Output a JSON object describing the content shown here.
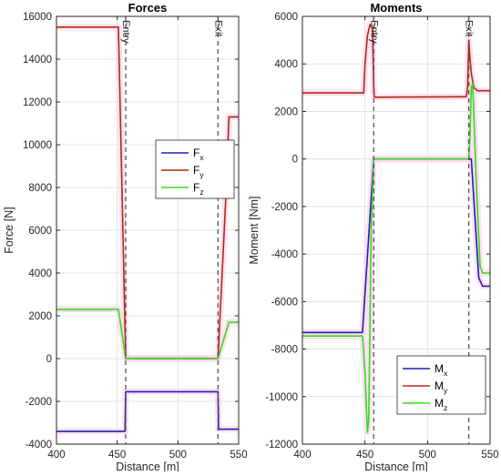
{
  "colors": {
    "x": "#1f1fb0",
    "y": "#b02a0e",
    "z": "#33dd1a",
    "halo": "#ffd6f0",
    "grid": "#dcdcdc",
    "axis": "#262626",
    "marker": "#555555"
  },
  "chart_data": [
    {
      "type": "line",
      "title": "Forces",
      "xlabel": "Distance [m]",
      "ylabel": "Force [N]",
      "xlim": [
        400,
        550
      ],
      "ylim": [
        -4000,
        16000
      ],
      "grid": true,
      "legend_position": "center-right",
      "xticks": [
        400,
        450,
        500,
        550
      ],
      "yticks": [
        -4000,
        -2000,
        0,
        2000,
        4000,
        6000,
        8000,
        10000,
        12000,
        14000,
        16000
      ],
      "annotations": [
        {
          "label": "Entry",
          "x": 457
        },
        {
          "label": "Exit",
          "x": 533
        }
      ],
      "series": [
        {
          "name": "F",
          "sub": "x",
          "key": "x",
          "x": [
            400,
            456.5,
            457,
            533,
            533.5,
            550
          ],
          "y": [
            -3400,
            -3400,
            -1550,
            -1550,
            -3300,
            -3300
          ]
        },
        {
          "name": "F",
          "sub": "y",
          "key": "y",
          "x": [
            400,
            451,
            457,
            533,
            540,
            542,
            550
          ],
          "y": [
            15500,
            15500,
            0,
            0,
            8200,
            11300,
            11300
          ]
        },
        {
          "name": "F",
          "sub": "z",
          "key": "z",
          "x": [
            400,
            451,
            457,
            533,
            542,
            550
          ],
          "y": [
            2300,
            2300,
            0,
            0,
            1700,
            1700
          ]
        }
      ]
    },
    {
      "type": "line",
      "title": "Moments",
      "xlabel": "Distance [m]",
      "ylabel": "Moment [Nm]",
      "xlim": [
        400,
        550
      ],
      "ylim": [
        -12000,
        6000
      ],
      "grid": true,
      "legend_position": "bottom-right",
      "xticks": [
        400,
        450,
        500,
        550
      ],
      "yticks": [
        -12000,
        -10000,
        -8000,
        -6000,
        -4000,
        -2000,
        0,
        2000,
        4000,
        6000
      ],
      "annotations": [
        {
          "label": "Entry",
          "x": 457
        },
        {
          "label": "Exit",
          "x": 533
        }
      ],
      "series": [
        {
          "name": "M",
          "sub": "x",
          "key": "x",
          "x": [
            400,
            448,
            457,
            533,
            535,
            541,
            544,
            550
          ],
          "y": [
            -7300,
            -7300,
            0,
            0,
            0,
            -5000,
            -5350,
            -5350
          ]
        },
        {
          "name": "M",
          "sub": "y",
          "key": "y",
          "x": [
            400,
            449,
            450,
            452,
            454,
            456,
            457,
            457.5,
            531,
            532,
            533,
            534,
            535,
            536,
            537,
            540,
            550
          ],
          "y": [
            2780,
            2780,
            4000,
            5200,
            5650,
            5500,
            3000,
            2600,
            2620,
            3000,
            5000,
            4200,
            3600,
            3300,
            3000,
            2870,
            2870
          ]
        },
        {
          "name": "M",
          "sub": "z",
          "key": "z",
          "x": [
            400,
            448,
            450,
            452,
            453,
            455,
            457,
            533,
            534,
            535,
            536,
            537,
            539,
            542,
            544,
            550
          ],
          "y": [
            -7450,
            -7450,
            -9000,
            -11500,
            -11000,
            -3000,
            0,
            0,
            1000,
            3000,
            3200,
            2000,
            -1000,
            -4500,
            -4800,
            -4800
          ]
        }
      ]
    }
  ]
}
